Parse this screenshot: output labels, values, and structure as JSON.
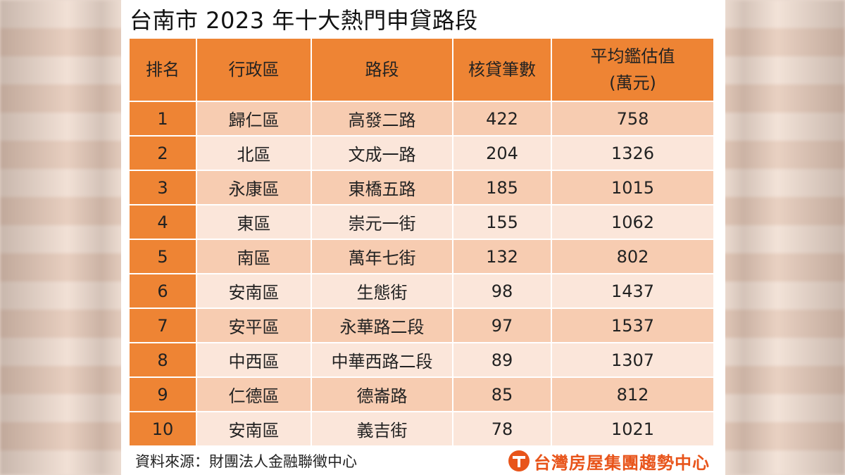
{
  "title": "台南市 2023 年十大熱門申貸路段",
  "headers": {
    "rank": "排名",
    "district": "行政區",
    "road": "路段",
    "count": "核貸筆數",
    "value_line1": "平均鑑估值",
    "value_line2": "(萬元)"
  },
  "rows": [
    {
      "rank": "1",
      "district": "歸仁區",
      "road": "高發二路",
      "count": "422",
      "value": "758"
    },
    {
      "rank": "2",
      "district": "北區",
      "road": "文成一路",
      "count": "204",
      "value": "1326"
    },
    {
      "rank": "3",
      "district": "永康區",
      "road": "東橋五路",
      "count": "185",
      "value": "1015"
    },
    {
      "rank": "4",
      "district": "東區",
      "road": "崇元一街",
      "count": "155",
      "value": "1062"
    },
    {
      "rank": "5",
      "district": "南區",
      "road": "萬年七街",
      "count": "132",
      "value": "802"
    },
    {
      "rank": "6",
      "district": "安南區",
      "road": "生態街",
      "count": "98",
      "value": "1437"
    },
    {
      "rank": "7",
      "district": "安平區",
      "road": "永華路二段",
      "count": "97",
      "value": "1537"
    },
    {
      "rank": "8",
      "district": "中西區",
      "road": "中華西路二段",
      "count": "89",
      "value": "1307"
    },
    {
      "rank": "9",
      "district": "仁德區",
      "road": "德崙路",
      "count": "85",
      "value": "812"
    },
    {
      "rank": "10",
      "district": "安南區",
      "road": "義吉街",
      "count": "78",
      "value": "1021"
    }
  ],
  "footer": {
    "source": "資料來源：財團法人金融聯徵中心",
    "brand": "台灣房屋集團趨勢中心",
    "brand_icon": "taiwan-realty-logo-icon"
  },
  "colors": {
    "header_orange": "#ee8434",
    "row_dark": "#f7ccb1",
    "row_light": "#fbe6da",
    "brand_red": "#e8541a"
  }
}
